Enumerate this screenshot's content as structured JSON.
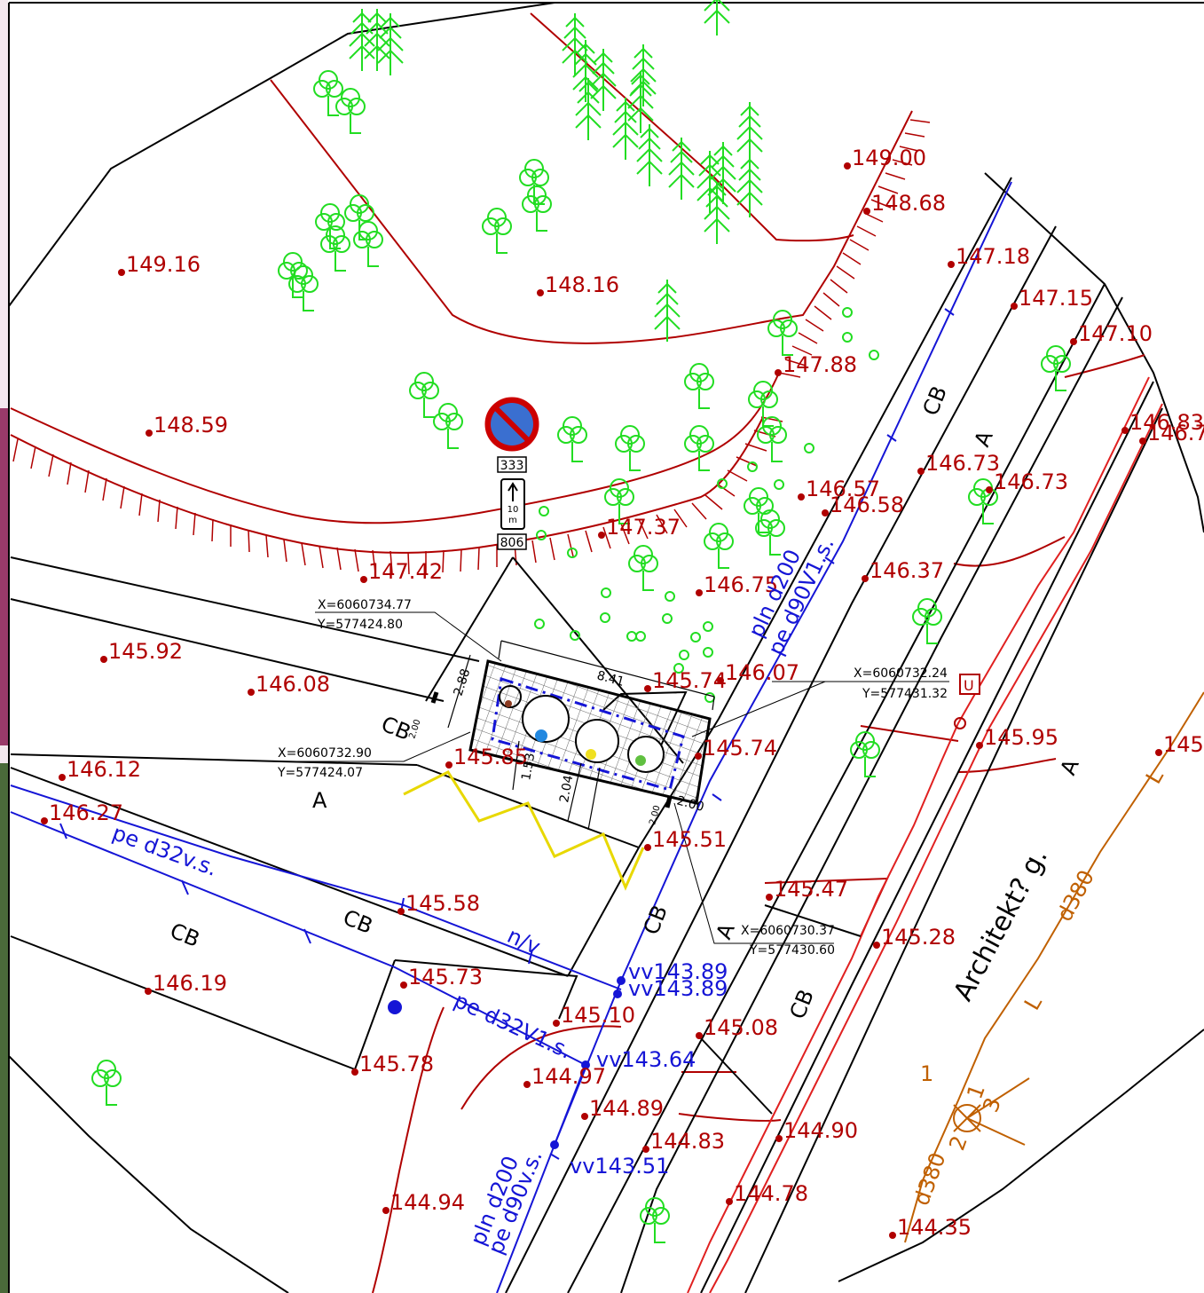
{
  "elevations": [
    "149.00",
    "148.68",
    "147.18",
    "147.15",
    "147.10",
    "146.83",
    "146.7",
    "149.16",
    "148.16",
    "147.88",
    "148.59",
    "146.57",
    "146.58",
    "146.73",
    "146.73",
    "147.37",
    "147.42",
    "146.75",
    "146.37",
    "145.92",
    "146.08",
    "146.07",
    "145.74",
    "145.74",
    "145.95",
    "145",
    "146.12",
    "145.85",
    "146.27",
    "145.51",
    "145.58",
    "145.47",
    "145.28",
    "146.19",
    "145.73",
    "145.10",
    "145.08",
    "145.78",
    "144.97",
    "144.90",
    "144.89",
    "144.83",
    "144.94",
    "144.78",
    "144.35"
  ],
  "pipes": {
    "main_right": "pln d200",
    "main_right_pe": "pe d90V1.s.",
    "left_upper": "pe d32v.s.",
    "left_lower": "pe d32V1.s.",
    "bottom_pln": "pln d200",
    "bottom_pe": "pe d90v.s.",
    "nv": "n/v"
  },
  "water_levels": [
    "vv143.89",
    "vv143.89",
    "vv143.64",
    "vv143.51"
  ],
  "cb_labels": [
    "CB",
    "CB",
    "CB",
    "CB",
    "CB",
    "CB",
    "CB"
  ],
  "a_labels": [
    "A",
    "A",
    "A",
    "A"
  ],
  "street": "Architekt? g.",
  "d380": [
    "d380",
    "d380"
  ],
  "l_labels": [
    "L",
    "L"
  ],
  "brown_numbers": [
    "1",
    "1",
    "2",
    "3"
  ],
  "u_label": "U",
  "sign": {
    "code_top": "333",
    "code_bottom": "806",
    "distance": "10",
    "unit": "m"
  },
  "coords": [
    {
      "x": "X=6060734.77",
      "y": "Y=577424.80"
    },
    {
      "x": "X=6060732.24",
      "y": "Y=577431.32"
    },
    {
      "x": "X=6060732.90",
      "y": "Y=577424.07"
    },
    {
      "x": "X=6060730.37",
      "y": "Y=577430.60"
    }
  ],
  "dims": [
    "8.41",
    "2.88",
    "2.00",
    "1.53",
    "2.04",
    "2.00",
    "2.00"
  ],
  "colors": {
    "contour": "#b00000",
    "water": "#1515d6",
    "tree": "#22dd22",
    "gas": "#c06000",
    "yellow": "#e8d800",
    "boundary": "#000000"
  }
}
